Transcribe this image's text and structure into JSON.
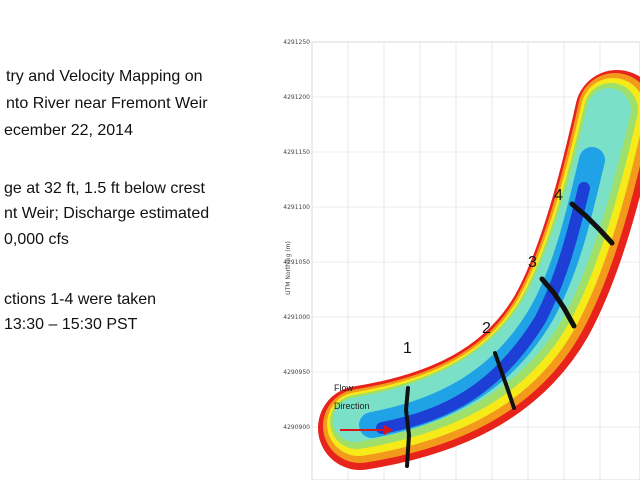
{
  "slide": {
    "title_lines": [
      "try and Velocity Mapping on",
      "nto River near Fremont Weir",
      "ecember 22, 2014"
    ],
    "conditions_lines": [
      "ge at 32 ft, 1.5 ft below crest",
      "nt Weir; Discharge estimated",
      "0,000 cfs"
    ],
    "sections_lines": [
      "ctions 1-4 were taken",
      "13:30 – 15:30 PST"
    ]
  },
  "plot": {
    "ylabel": "UTM Northing (m)",
    "y_ticks": [
      "4291250",
      "4291200",
      "4291150",
      "4291100",
      "4291050",
      "4291000",
      "4290950",
      "4290900"
    ],
    "section_labels": [
      "1",
      "2",
      "3",
      "4"
    ],
    "flow_label_lines": [
      "Flow",
      "Direction"
    ],
    "colors": {
      "grid": "#dddddd",
      "bank": "#e8231b",
      "mid": "#f7ea19",
      "light": "#7be0c8",
      "deep": "#1d3fd6",
      "transect": "#111111",
      "arrow": "#d8141b"
    }
  }
}
